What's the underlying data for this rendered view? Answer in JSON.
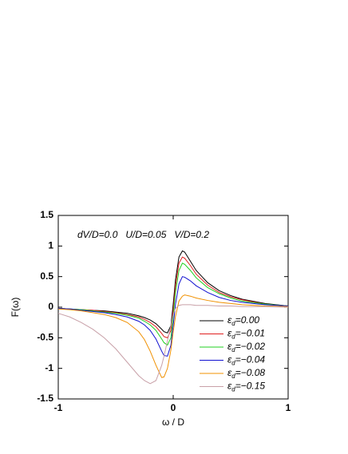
{
  "chart_data": {
    "type": "line",
    "annotation": "dV/D=0.0   U/D=0.05   V/D=0.2",
    "xlabel": "ω / D",
    "ylabel": "F(ω)",
    "x": [
      -1,
      -0.9,
      -0.8,
      -0.7,
      -0.6,
      -0.5,
      -0.4,
      -0.3,
      -0.25,
      -0.2,
      -0.15,
      -0.1,
      -0.08,
      -0.05,
      -0.02,
      0,
      0.02,
      0.05,
      0.08,
      0.1,
      0.15,
      0.2,
      0.3,
      0.4,
      0.5,
      0.6,
      0.8,
      1
    ],
    "series": [
      {
        "name": "εd=0.00",
        "color": "#000000",
        "values": [
          -0.02,
          -0.03,
          -0.04,
          -0.05,
          -0.06,
          -0.08,
          -0.1,
          -0.14,
          -0.17,
          -0.21,
          -0.27,
          -0.36,
          -0.4,
          -0.42,
          -0.3,
          0.05,
          0.45,
          0.82,
          0.92,
          0.9,
          0.75,
          0.6,
          0.4,
          0.27,
          0.19,
          0.13,
          0.06,
          0.02
        ]
      },
      {
        "name": "εd=−0.01",
        "color": "#e02020",
        "values": [
          -0.02,
          -0.03,
          -0.04,
          -0.05,
          -0.07,
          -0.09,
          -0.12,
          -0.16,
          -0.2,
          -0.25,
          -0.32,
          -0.43,
          -0.48,
          -0.5,
          -0.38,
          -0.05,
          0.35,
          0.72,
          0.82,
          0.8,
          0.68,
          0.54,
          0.36,
          0.24,
          0.17,
          0.12,
          0.05,
          0.02
        ]
      },
      {
        "name": "εd=−0.02",
        "color": "#20d020",
        "values": [
          -0.02,
          -0.03,
          -0.04,
          -0.06,
          -0.08,
          -0.1,
          -0.13,
          -0.18,
          -0.23,
          -0.29,
          -0.38,
          -0.52,
          -0.58,
          -0.62,
          -0.5,
          -0.15,
          0.25,
          0.6,
          0.72,
          0.7,
          0.6,
          0.48,
          0.32,
          0.22,
          0.15,
          0.1,
          0.05,
          0.02
        ]
      },
      {
        "name": "εd=−0.04",
        "color": "#1010d0",
        "values": [
          -0.02,
          -0.03,
          -0.05,
          -0.07,
          -0.09,
          -0.12,
          -0.16,
          -0.23,
          -0.29,
          -0.38,
          -0.52,
          -0.72,
          -0.79,
          -0.8,
          -0.62,
          -0.3,
          0.05,
          0.38,
          0.5,
          0.49,
          0.43,
          0.35,
          0.24,
          0.16,
          0.11,
          0.08,
          0.04,
          0.02
        ]
      },
      {
        "name": "εd=−0.08",
        "color": "#f09000",
        "values": [
          -0.03,
          -0.04,
          -0.06,
          -0.09,
          -0.12,
          -0.17,
          -0.25,
          -0.4,
          -0.53,
          -0.72,
          -0.95,
          -1.15,
          -1.14,
          -1.0,
          -0.7,
          -0.4,
          -0.15,
          0.1,
          0.18,
          0.2,
          0.18,
          0.15,
          0.11,
          0.08,
          0.06,
          0.04,
          0.02,
          0.01
        ]
      },
      {
        "name": "εd=−0.15",
        "color": "#c8a0a8",
        "values": [
          -0.1,
          -0.16,
          -0.25,
          -0.36,
          -0.5,
          -0.68,
          -0.9,
          -1.12,
          -1.2,
          -1.25,
          -1.2,
          -0.95,
          -0.8,
          -0.55,
          -0.3,
          -0.12,
          -0.02,
          0.03,
          0.04,
          0.04,
          0.04,
          0.03,
          0.03,
          0.02,
          0.02,
          0.01,
          0.01,
          0.0
        ]
      }
    ],
    "xlim": [
      -1,
      1
    ],
    "xticks": [
      -1,
      0,
      1
    ],
    "ylim": [
      -1.5,
      1.5
    ],
    "yticks": [
      1.5,
      1,
      0.5,
      0,
      -0.5,
      -1,
      -1.5
    ]
  }
}
